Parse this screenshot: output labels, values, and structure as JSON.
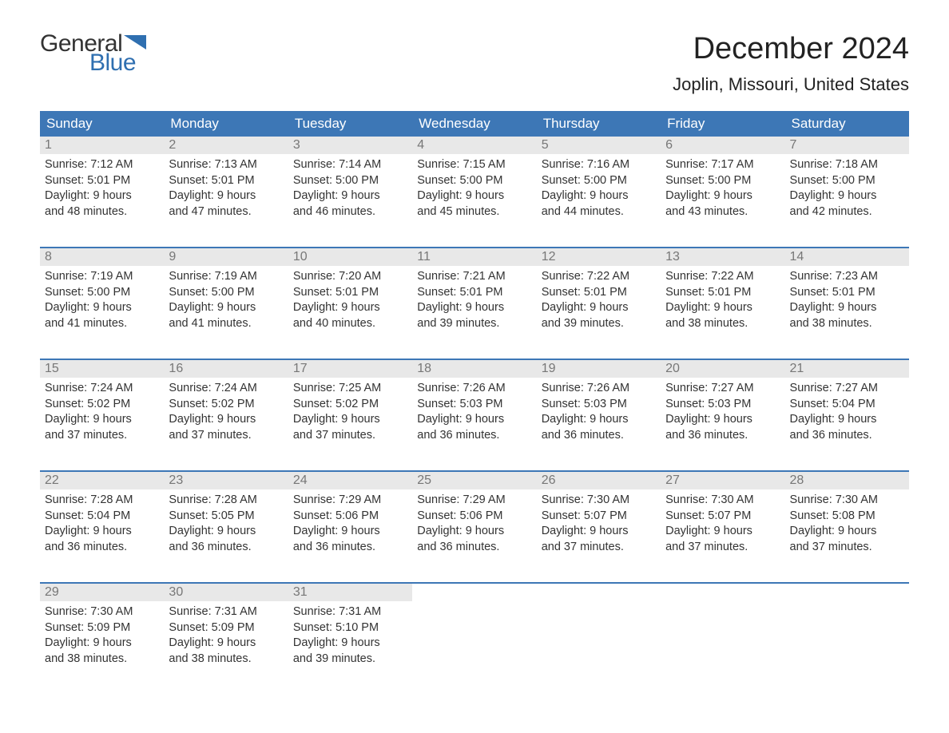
{
  "logo": {
    "word1": "General",
    "word2": "Blue",
    "flag_color": "#2f6fb0"
  },
  "title": "December 2024",
  "location": "Joplin, Missouri, United States",
  "colors": {
    "header_bg": "#3d77b6",
    "header_text": "#ffffff",
    "daynum_bg": "#e8e8e8",
    "daynum_text": "#777777",
    "body_text": "#333333",
    "rule": "#3d77b6"
  },
  "weekdays": [
    "Sunday",
    "Monday",
    "Tuesday",
    "Wednesday",
    "Thursday",
    "Friday",
    "Saturday"
  ],
  "labels": {
    "sunrise": "Sunrise:",
    "sunset": "Sunset:",
    "daylight": "Daylight:"
  },
  "weeks": [
    [
      {
        "n": "1",
        "sr": "7:12 AM",
        "ss": "5:01 PM",
        "dl1": "9 hours",
        "dl2": "and 48 minutes."
      },
      {
        "n": "2",
        "sr": "7:13 AM",
        "ss": "5:01 PM",
        "dl1": "9 hours",
        "dl2": "and 47 minutes."
      },
      {
        "n": "3",
        "sr": "7:14 AM",
        "ss": "5:00 PM",
        "dl1": "9 hours",
        "dl2": "and 46 minutes."
      },
      {
        "n": "4",
        "sr": "7:15 AM",
        "ss": "5:00 PM",
        "dl1": "9 hours",
        "dl2": "and 45 minutes."
      },
      {
        "n": "5",
        "sr": "7:16 AM",
        "ss": "5:00 PM",
        "dl1": "9 hours",
        "dl2": "and 44 minutes."
      },
      {
        "n": "6",
        "sr": "7:17 AM",
        "ss": "5:00 PM",
        "dl1": "9 hours",
        "dl2": "and 43 minutes."
      },
      {
        "n": "7",
        "sr": "7:18 AM",
        "ss": "5:00 PM",
        "dl1": "9 hours",
        "dl2": "and 42 minutes."
      }
    ],
    [
      {
        "n": "8",
        "sr": "7:19 AM",
        "ss": "5:00 PM",
        "dl1": "9 hours",
        "dl2": "and 41 minutes."
      },
      {
        "n": "9",
        "sr": "7:19 AM",
        "ss": "5:00 PM",
        "dl1": "9 hours",
        "dl2": "and 41 minutes."
      },
      {
        "n": "10",
        "sr": "7:20 AM",
        "ss": "5:01 PM",
        "dl1": "9 hours",
        "dl2": "and 40 minutes."
      },
      {
        "n": "11",
        "sr": "7:21 AM",
        "ss": "5:01 PM",
        "dl1": "9 hours",
        "dl2": "and 39 minutes."
      },
      {
        "n": "12",
        "sr": "7:22 AM",
        "ss": "5:01 PM",
        "dl1": "9 hours",
        "dl2": "and 39 minutes."
      },
      {
        "n": "13",
        "sr": "7:22 AM",
        "ss": "5:01 PM",
        "dl1": "9 hours",
        "dl2": "and 38 minutes."
      },
      {
        "n": "14",
        "sr": "7:23 AM",
        "ss": "5:01 PM",
        "dl1": "9 hours",
        "dl2": "and 38 minutes."
      }
    ],
    [
      {
        "n": "15",
        "sr": "7:24 AM",
        "ss": "5:02 PM",
        "dl1": "9 hours",
        "dl2": "and 37 minutes."
      },
      {
        "n": "16",
        "sr": "7:24 AM",
        "ss": "5:02 PM",
        "dl1": "9 hours",
        "dl2": "and 37 minutes."
      },
      {
        "n": "17",
        "sr": "7:25 AM",
        "ss": "5:02 PM",
        "dl1": "9 hours",
        "dl2": "and 37 minutes."
      },
      {
        "n": "18",
        "sr": "7:26 AM",
        "ss": "5:03 PM",
        "dl1": "9 hours",
        "dl2": "and 36 minutes."
      },
      {
        "n": "19",
        "sr": "7:26 AM",
        "ss": "5:03 PM",
        "dl1": "9 hours",
        "dl2": "and 36 minutes."
      },
      {
        "n": "20",
        "sr": "7:27 AM",
        "ss": "5:03 PM",
        "dl1": "9 hours",
        "dl2": "and 36 minutes."
      },
      {
        "n": "21",
        "sr": "7:27 AM",
        "ss": "5:04 PM",
        "dl1": "9 hours",
        "dl2": "and 36 minutes."
      }
    ],
    [
      {
        "n": "22",
        "sr": "7:28 AM",
        "ss": "5:04 PM",
        "dl1": "9 hours",
        "dl2": "and 36 minutes."
      },
      {
        "n": "23",
        "sr": "7:28 AM",
        "ss": "5:05 PM",
        "dl1": "9 hours",
        "dl2": "and 36 minutes."
      },
      {
        "n": "24",
        "sr": "7:29 AM",
        "ss": "5:06 PM",
        "dl1": "9 hours",
        "dl2": "and 36 minutes."
      },
      {
        "n": "25",
        "sr": "7:29 AM",
        "ss": "5:06 PM",
        "dl1": "9 hours",
        "dl2": "and 36 minutes."
      },
      {
        "n": "26",
        "sr": "7:30 AM",
        "ss": "5:07 PM",
        "dl1": "9 hours",
        "dl2": "and 37 minutes."
      },
      {
        "n": "27",
        "sr": "7:30 AM",
        "ss": "5:07 PM",
        "dl1": "9 hours",
        "dl2": "and 37 minutes."
      },
      {
        "n": "28",
        "sr": "7:30 AM",
        "ss": "5:08 PM",
        "dl1": "9 hours",
        "dl2": "and 37 minutes."
      }
    ],
    [
      {
        "n": "29",
        "sr": "7:30 AM",
        "ss": "5:09 PM",
        "dl1": "9 hours",
        "dl2": "and 38 minutes."
      },
      {
        "n": "30",
        "sr": "7:31 AM",
        "ss": "5:09 PM",
        "dl1": "9 hours",
        "dl2": "and 38 minutes."
      },
      {
        "n": "31",
        "sr": "7:31 AM",
        "ss": "5:10 PM",
        "dl1": "9 hours",
        "dl2": "and 39 minutes."
      },
      null,
      null,
      null,
      null
    ]
  ]
}
